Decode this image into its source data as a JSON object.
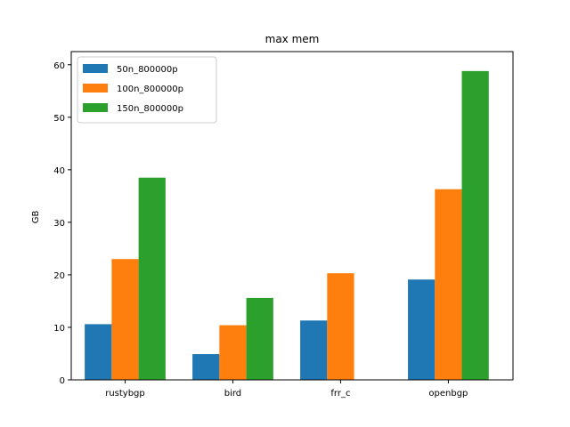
{
  "chart_data": {
    "type": "bar",
    "title": "max mem",
    "xlabel": "",
    "ylabel": "GB",
    "ylim": [
      0,
      62.5
    ],
    "yticks": [
      0,
      10,
      20,
      30,
      40,
      50,
      60
    ],
    "categories": [
      "rustybgp",
      "bird",
      "frr_c",
      "openbgp"
    ],
    "series": [
      {
        "name": "50n_800000p",
        "color": "#1f77b4",
        "values": [
          10.6,
          4.9,
          11.3,
          19.1
        ]
      },
      {
        "name": "100n_800000p",
        "color": "#ff7f0e",
        "values": [
          23.0,
          10.4,
          20.3,
          36.3
        ]
      },
      {
        "name": "150n_800000p",
        "color": "#2ca02c",
        "values": [
          38.5,
          15.6,
          null,
          58.8
        ]
      }
    ],
    "grid": false,
    "legend_position": "top-left"
  }
}
